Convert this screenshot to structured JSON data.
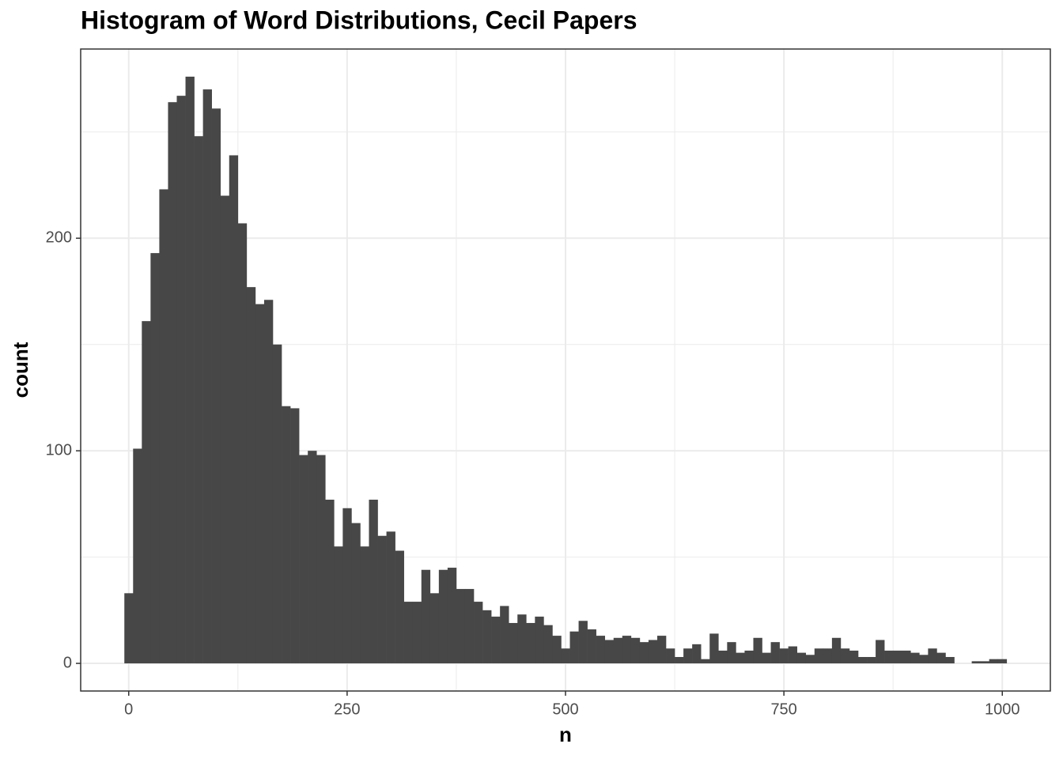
{
  "chart_data": {
    "type": "histogram",
    "title": "Histogram of Word Distributions, Cecil Papers",
    "x_label": "n",
    "y_label": "count",
    "bins": [
      -5,
      5,
      15,
      25,
      35,
      45,
      55,
      65,
      75,
      85,
      95,
      105,
      115,
      125,
      135,
      145,
      155,
      165,
      175,
      185,
      195,
      205,
      215,
      225,
      235,
      245,
      255,
      265,
      275,
      285,
      295,
      305,
      315,
      325,
      335,
      345,
      355,
      365,
      375,
      385,
      395,
      405,
      415,
      425,
      435,
      445,
      455,
      465,
      475,
      485,
      495,
      505,
      515,
      525,
      535,
      545,
      555,
      565,
      575,
      585,
      595,
      605,
      615,
      625,
      635,
      645,
      655,
      665,
      675,
      685,
      695,
      705,
      715,
      725,
      735,
      745,
      755,
      765,
      775,
      785,
      795,
      805,
      815,
      825,
      835,
      845,
      855,
      865,
      875,
      885,
      895,
      905,
      915,
      925,
      935,
      945,
      955,
      965,
      975,
      985,
      995,
      1005
    ],
    "values": [
      33,
      101,
      161,
      193,
      223,
      264,
      267,
      276,
      248,
      270,
      261,
      220,
      239,
      207,
      177,
      169,
      171,
      150,
      121,
      120,
      98,
      100,
      98,
      77,
      55,
      73,
      66,
      55,
      77,
      60,
      62,
      53,
      29,
      29,
      44,
      33,
      44,
      45,
      35,
      35,
      29,
      25,
      22,
      27,
      19,
      23,
      19,
      22,
      18,
      13,
      7,
      15,
      20,
      16,
      13,
      11,
      12,
      13,
      12,
      10,
      11,
      13,
      7,
      3,
      7,
      9,
      2,
      14,
      6,
      10,
      5,
      6,
      12,
      5,
      10,
      7,
      8,
      5,
      4,
      7,
      7,
      12,
      7,
      6,
      3,
      3,
      11,
      6,
      6,
      6,
      5,
      4,
      7,
      5,
      3,
      0,
      0,
      1,
      1,
      2,
      2
    ],
    "color": "#474747",
    "xlim": [
      -55,
      1055
    ],
    "ylim": [
      -13,
      289
    ],
    "xticks": [
      0,
      250,
      500,
      750,
      1000
    ],
    "yticks": [
      0,
      100,
      200
    ],
    "grid": true,
    "minor_grid": true
  }
}
